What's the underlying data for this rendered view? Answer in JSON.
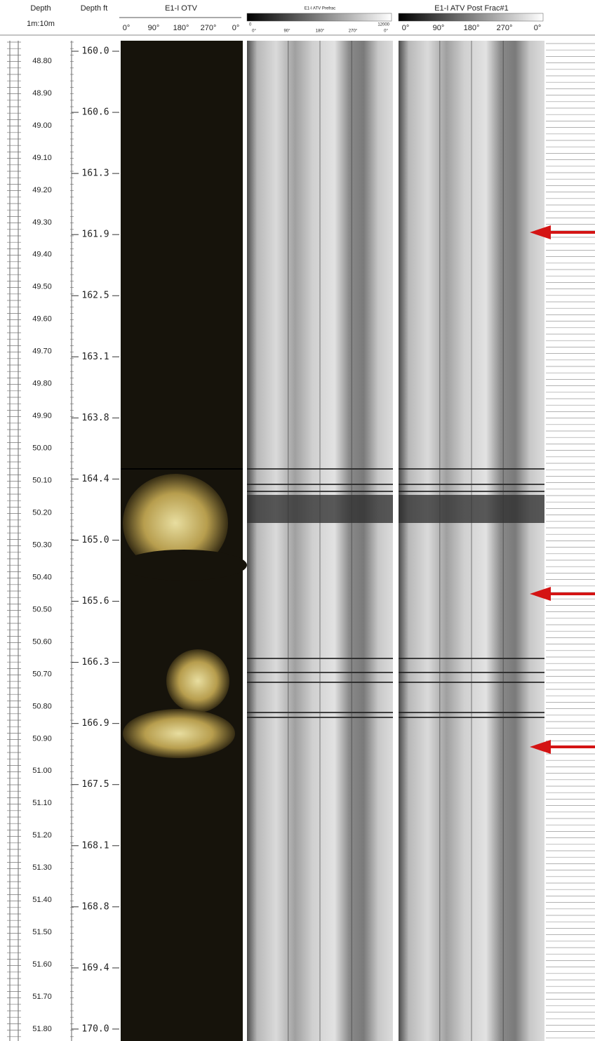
{
  "header": {
    "depth_m": {
      "title": "Depth",
      "scale": "1m:10m"
    },
    "depth_ft": {
      "title": "Depth ft"
    },
    "tracks": [
      {
        "title": "E1-I OTV",
        "azimuths": [
          "0°",
          "90°",
          "180°",
          "270°",
          "0°"
        ]
      },
      {
        "title": "E1-I ATV Prefrac",
        "scale_min": "0",
        "scale_max": "12000",
        "azimuths": [
          "0°",
          "90°",
          "180°",
          "270°",
          "0°"
        ]
      },
      {
        "title": "E1-I ATV Post Frac#1",
        "azimuths": [
          "0°",
          "90°",
          "180°",
          "270°",
          "0°"
        ]
      }
    ]
  },
  "depth_m_labels": [
    "48.80",
    "48.90",
    "49.00",
    "49.10",
    "49.20",
    "49.30",
    "49.40",
    "49.50",
    "49.60",
    "49.70",
    "49.80",
    "49.90",
    "50.00",
    "50.10",
    "50.20",
    "50.30",
    "50.40",
    "50.50",
    "50.60",
    "50.70",
    "50.80",
    "50.90",
    "51.00",
    "51.10",
    "51.20",
    "51.30",
    "51.40",
    "51.50",
    "51.60",
    "51.70",
    "51.80"
  ],
  "depth_ft_labels": [
    "160.0",
    "160.6",
    "161.3",
    "161.9",
    "162.5",
    "163.1",
    "163.8",
    "164.4",
    "165.0",
    "165.6",
    "166.3",
    "166.9",
    "167.5",
    "168.1",
    "168.8",
    "169.4",
    "170.0"
  ]
}
